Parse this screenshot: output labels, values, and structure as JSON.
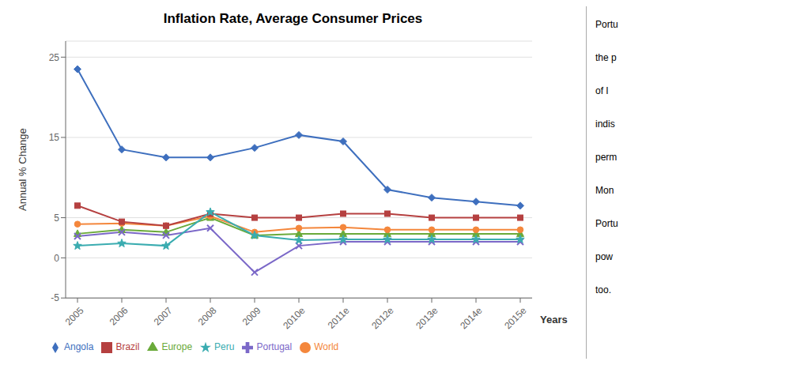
{
  "chart_data": {
    "type": "line",
    "title": "Inflation Rate, Average Consumer Prices",
    "x_label": "Years",
    "y_label": "Annual % Change",
    "categories": [
      "2005",
      "2006",
      "2007",
      "2008",
      "2009",
      "2010e",
      "2011e",
      "2012e",
      "2013e",
      "2014e",
      "2015e"
    ],
    "series": [
      {
        "name": "Europe",
        "color": "#6aaa3a",
        "marker": "triangle",
        "values": [
          3.0,
          3.5,
          3.2,
          5.0,
          2.8,
          3.0,
          3.0,
          3.0,
          3.0,
          3.0,
          3.0
        ]
      },
      {
        "name": "World",
        "color": "#f4873c",
        "marker": "circle",
        "values": [
          4.2,
          4.3,
          4.0,
          5.2,
          3.2,
          3.7,
          3.8,
          3.5,
          3.5,
          3.5,
          3.5
        ]
      },
      {
        "name": "Angola",
        "color": "#3e6fbe",
        "marker": "diamond",
        "values": [
          23.5,
          13.5,
          12.5,
          12.5,
          13.7,
          15.3,
          14.5,
          8.5,
          7.5,
          7.0,
          6.5
        ]
      },
      {
        "name": "Brazil",
        "color": "#b54040",
        "marker": "square",
        "values": [
          6.5,
          4.5,
          4.0,
          5.5,
          5.0,
          5.0,
          5.5,
          5.5,
          5.0,
          5.0,
          5.0
        ]
      },
      {
        "name": "Portugal",
        "color": "#7b68c8",
        "marker": "x",
        "values": [
          2.7,
          3.2,
          2.8,
          3.7,
          -1.8,
          1.5,
          2.0,
          2.0,
          2.0,
          2.0,
          2.0
        ]
      },
      {
        "name": "Peru",
        "color": "#3aacb0",
        "marker": "star",
        "values": [
          1.5,
          1.8,
          1.5,
          5.7,
          2.8,
          2.2,
          2.3,
          2.3,
          2.3,
          2.3,
          2.3
        ]
      }
    ],
    "ylim": [
      -5,
      27
    ],
    "yticks": [
      -5,
      0,
      5,
      15,
      25
    ],
    "grid": true,
    "legend": "bottom",
    "annotations": [
      "Portu",
      "the p",
      "of I",
      "indis",
      "perm",
      "Mon",
      "Portu",
      "pow",
      "too."
    ]
  }
}
